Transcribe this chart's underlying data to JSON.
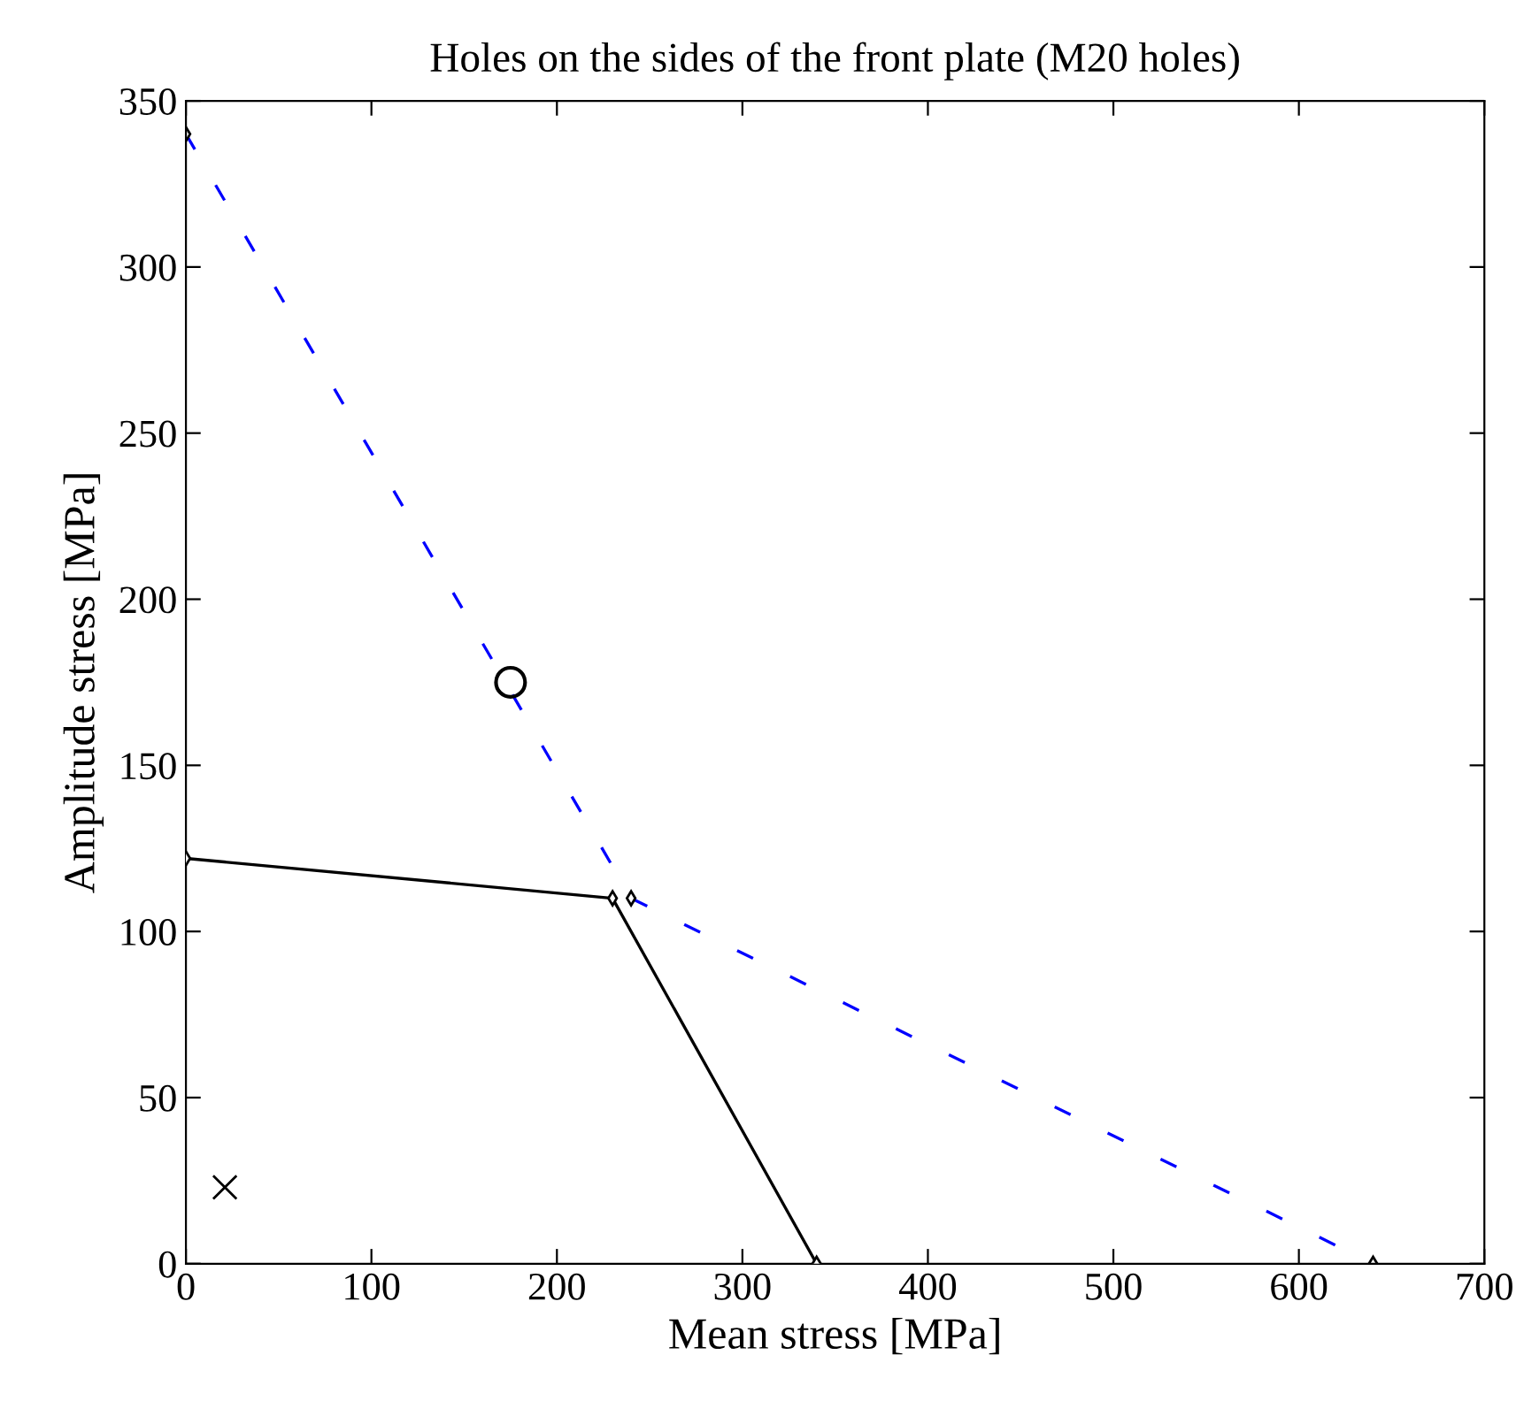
{
  "chart_data": {
    "type": "line",
    "title": "Holes on the sides of the front plate (M20 holes)",
    "xlabel": "Mean stress [MPa]",
    "ylabel": "Amplitude stress [MPa]",
    "xlim": [
      0,
      700
    ],
    "ylim": [
      0,
      350
    ],
    "xticks": [
      0,
      100,
      200,
      300,
      400,
      500,
      600,
      700
    ],
    "yticks": [
      0,
      50,
      100,
      150,
      200,
      250,
      300,
      350
    ],
    "grid": false,
    "legend": false,
    "series": [
      {
        "color": "#0000ff",
        "line_style": "dashed",
        "marker": "diamond",
        "x": [
          0,
          240,
          640
        ],
        "values": [
          340,
          110,
          0
        ]
      },
      {
        "color": "#000000",
        "line_style": "solid",
        "marker": "diamond",
        "x": [
          0,
          230,
          340
        ],
        "values": [
          122,
          110,
          0
        ]
      },
      {
        "type": "scatter",
        "color": "#000000",
        "marker": "circle",
        "x": [
          175
        ],
        "values": [
          175
        ]
      },
      {
        "type": "scatter",
        "color": "#000000",
        "marker": "cross",
        "x": [
          21
        ],
        "values": [
          23
        ]
      }
    ]
  }
}
